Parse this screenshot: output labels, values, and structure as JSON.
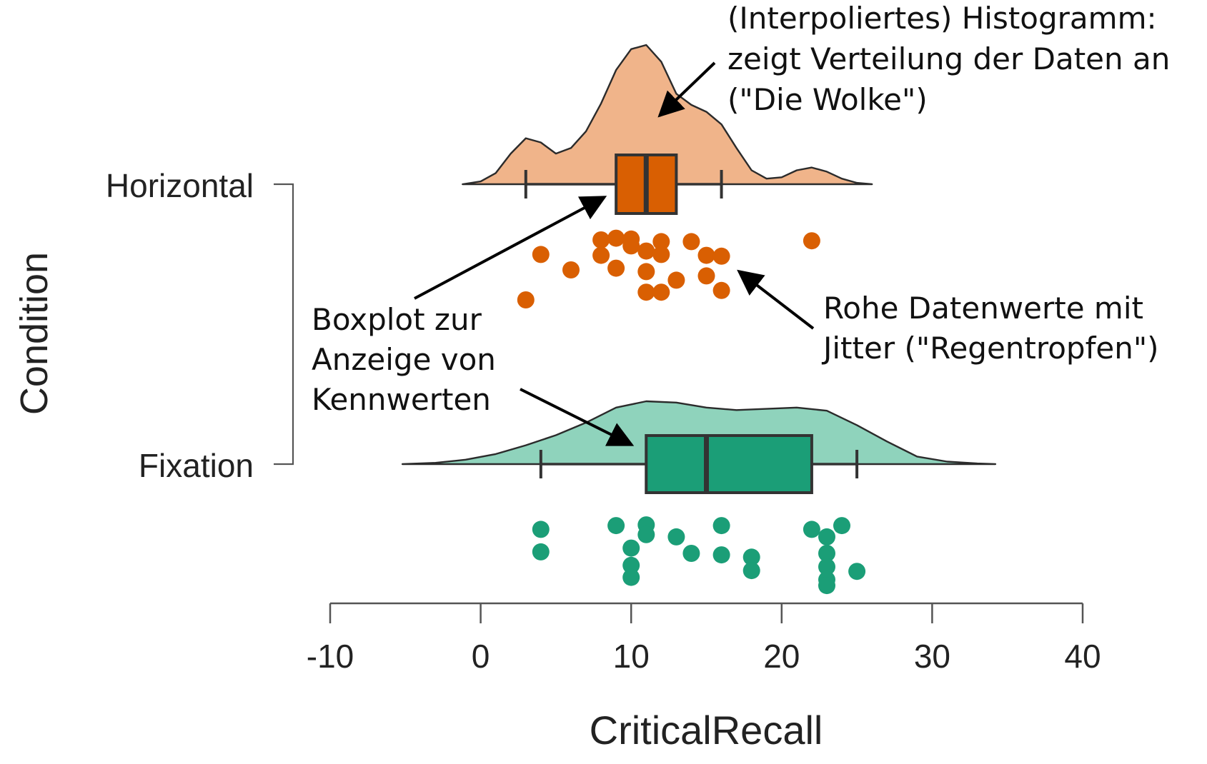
{
  "chart_data": {
    "type": "raincloud",
    "xlabel": "CriticalRecall",
    "ylabel": "Condition",
    "xlim": [
      -10,
      40
    ],
    "xticks": [
      -10,
      0,
      10,
      20,
      30,
      40
    ],
    "xtick_labels": [
      "-10",
      "0",
      "10",
      "20",
      "30",
      "40"
    ],
    "categories": [
      "Horizontal",
      "Fixation"
    ],
    "grid": false,
    "series": [
      {
        "category": "Horizontal",
        "color": "#D95F02",
        "cloud_color": "#F0B48A",
        "box": {
          "whisker_low": 3,
          "q1": 9,
          "median": 11,
          "q3": 13,
          "whisker_high": 16
        },
        "density": [
          [
            -1.2,
            0.0
          ],
          [
            0.0,
            0.02
          ],
          [
            1.0,
            0.08
          ],
          [
            2.0,
            0.22
          ],
          [
            3.0,
            0.33
          ],
          [
            4.0,
            0.3
          ],
          [
            5.0,
            0.22
          ],
          [
            6.0,
            0.26
          ],
          [
            7.0,
            0.38
          ],
          [
            8.0,
            0.58
          ],
          [
            9.0,
            0.82
          ],
          [
            10.0,
            0.97
          ],
          [
            11.0,
            1.0
          ],
          [
            12.0,
            0.88
          ],
          [
            13.0,
            0.65
          ],
          [
            14.0,
            0.57
          ],
          [
            15.0,
            0.52
          ],
          [
            16.0,
            0.43
          ],
          [
            17.0,
            0.26
          ],
          [
            18.0,
            0.1
          ],
          [
            19.0,
            0.04
          ],
          [
            20.0,
            0.05
          ],
          [
            21.0,
            0.1
          ],
          [
            22.0,
            0.12
          ],
          [
            23.0,
            0.09
          ],
          [
            24.0,
            0.04
          ],
          [
            25.0,
            0.01
          ],
          [
            26.0,
            0.0
          ]
        ],
        "points": [
          [
            8,
            0.35
          ],
          [
            9,
            0.37
          ],
          [
            10,
            0.36
          ],
          [
            10,
            0.28
          ],
          [
            12,
            0.33
          ],
          [
            14,
            0.33
          ],
          [
            22,
            0.34
          ],
          [
            4,
            0.18
          ],
          [
            8,
            0.17
          ],
          [
            11,
            0.22
          ],
          [
            12,
            0.18
          ],
          [
            15,
            0.17
          ],
          [
            16,
            0.16
          ],
          [
            6,
            0.0
          ],
          [
            9,
            0.02
          ],
          [
            11,
            -0.02
          ],
          [
            13,
            -0.12
          ],
          [
            15,
            -0.07
          ],
          [
            3,
            -0.35
          ],
          [
            11,
            -0.26
          ],
          [
            12,
            -0.26
          ],
          [
            16,
            -0.24
          ]
        ]
      },
      {
        "category": "Fixation",
        "color": "#1B9E77",
        "cloud_color": "#8FD3BC",
        "box": {
          "whisker_low": 4,
          "q1": 11,
          "median": 15,
          "q3": 22,
          "whisker_high": 25
        },
        "density": [
          [
            -5.2,
            0.0
          ],
          [
            -3.0,
            0.02
          ],
          [
            -1.0,
            0.07
          ],
          [
            1.0,
            0.16
          ],
          [
            3.0,
            0.3
          ],
          [
            5.0,
            0.46
          ],
          [
            7.0,
            0.66
          ],
          [
            9.0,
            0.9
          ],
          [
            11.0,
            1.0
          ],
          [
            13.0,
            0.98
          ],
          [
            15.0,
            0.9
          ],
          [
            17.0,
            0.86
          ],
          [
            19.0,
            0.88
          ],
          [
            21.0,
            0.9
          ],
          [
            23.0,
            0.85
          ],
          [
            25.0,
            0.62
          ],
          [
            27.0,
            0.36
          ],
          [
            29.0,
            0.12
          ],
          [
            31.0,
            0.04
          ],
          [
            33.0,
            0.01
          ],
          [
            34.2,
            0.0
          ]
        ],
        "points": [
          [
            4,
            0.32
          ],
          [
            9,
            0.37
          ],
          [
            11,
            0.38
          ],
          [
            16,
            0.37
          ],
          [
            22,
            0.32
          ],
          [
            24,
            0.37
          ],
          [
            11,
            0.25
          ],
          [
            13,
            0.22
          ],
          [
            23,
            0.22
          ],
          [
            4,
            0.02
          ],
          [
            10,
            0.07
          ],
          [
            14,
            0.0
          ],
          [
            16,
            -0.02
          ],
          [
            18,
            -0.05
          ],
          [
            23,
            0.0
          ],
          [
            10,
            -0.16
          ],
          [
            18,
            -0.23
          ],
          [
            23,
            -0.18
          ],
          [
            25,
            -0.24
          ],
          [
            10,
            -0.32
          ],
          [
            23,
            -0.35
          ],
          [
            23,
            -0.43
          ]
        ]
      }
    ],
    "annotations": [
      {
        "lines": [
          "(Interpoliertes) Histogramm:",
          "zeigt Verteilung der Daten an",
          "(\"Die Wolke\")"
        ]
      },
      {
        "lines": [
          "Boxplot zur",
          "Anzeige von",
          "Kennwerten"
        ]
      },
      {
        "lines": [
          "Rohe Datenwerte mit",
          "Jitter (\"Regentropfen\")"
        ]
      }
    ]
  }
}
